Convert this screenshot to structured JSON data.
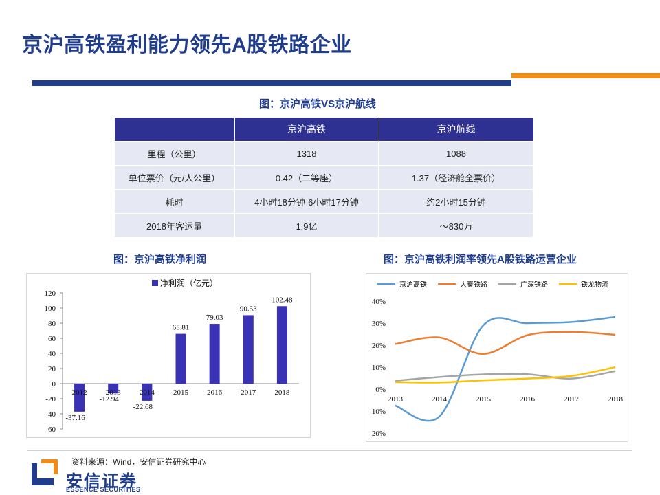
{
  "page": {
    "title": "京沪高铁盈利能力领先A股铁路企业",
    "colors": {
      "brand_blue": "#1f3d8c",
      "accent_orange": "#f08c1a",
      "table_header": "#2e3192",
      "table_cell": "#e6e9f3"
    }
  },
  "table": {
    "caption": "图：京沪高铁VS京沪航线",
    "headers": [
      "",
      "京沪高铁",
      "京沪航线"
    ],
    "rows": [
      [
        "里程（公里）",
        "1318",
        "1088"
      ],
      [
        "单位票价（元/人公里）",
        "0.42（二等座）",
        "1.37（经济舱全票价）"
      ],
      [
        "耗时",
        "4小时18分钟-6小时17分钟",
        "约2小时15分钟"
      ],
      [
        "2018年客运量",
        "1.9亿",
        "～830万"
      ]
    ]
  },
  "chart_data": [
    {
      "type": "bar",
      "title": "图：京沪高铁净利润",
      "legend": "净利润（亿元）",
      "categories": [
        "2012",
        "2013",
        "2014",
        "2015",
        "2016",
        "2017",
        "2018"
      ],
      "values": [
        -37.16,
        -12.94,
        -22.68,
        65.81,
        79.03,
        90.53,
        102.48
      ],
      "value_labels": [
        "-37.16",
        "-12.94",
        "-22.68",
        "65.81",
        "79.03",
        "90.53",
        "102.48"
      ],
      "yticks": [
        "120",
        "100",
        "80",
        "60",
        "40",
        "20",
        "0",
        "-20",
        "-40",
        "-60"
      ],
      "ylim": [
        -60,
        120
      ],
      "color": "#3a32b5"
    },
    {
      "type": "line",
      "title": "图：京沪高铁利润率领先A股铁路运营企业",
      "categories": [
        "2013",
        "2014",
        "2015",
        "2016",
        "2017",
        "2018"
      ],
      "yticks": [
        "40%",
        "30%",
        "20%",
        "10%",
        "0%",
        "-10%",
        "-20%"
      ],
      "ylim": [
        -20,
        40
      ],
      "series": [
        {
          "name": "京沪高铁",
          "color": "#5b9bd5",
          "values": [
            -7.5,
            -12.5,
            29,
            30,
            30.5,
            32.8
          ]
        },
        {
          "name": "大秦铁路",
          "color": "#ed7d31",
          "values": [
            20.5,
            23.5,
            16,
            24.5,
            26,
            24.7
          ]
        },
        {
          "name": "广深铁路",
          "color": "#a5a5a5",
          "values": [
            3.8,
            5.5,
            6.7,
            6.8,
            4.8,
            8.2
          ]
        },
        {
          "name": "铁龙物流",
          "color": "#ffc000",
          "values": [
            3.2,
            3,
            4,
            4.8,
            6,
            10
          ]
        }
      ]
    }
  ],
  "footer": {
    "source": "资料来源：Wind，安信证券研究中心",
    "logo_cn": "安信证券",
    "logo_en": "ESSENCE SECURITIES"
  }
}
